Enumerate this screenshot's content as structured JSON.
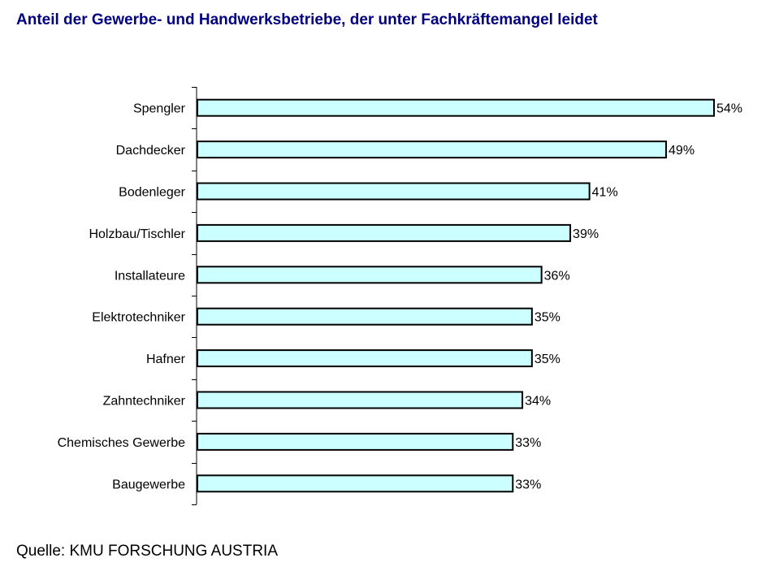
{
  "chart_data": {
    "type": "bar",
    "orientation": "horizontal",
    "title": "Anteil der Gewerbe- und Handwerksbetriebe, der unter Fachkräftemangel leidet",
    "source": "Quelle: KMU FORSCHUNG AUSTRIA",
    "categories": [
      "Spengler",
      "Dachdecker",
      "Bodenleger",
      "Holzbau/Tischler",
      "Installateure",
      "Elektrotechniker",
      "Hafner",
      "Zahntechniker",
      "Chemisches Gewerbe",
      "Baugewerbe"
    ],
    "values": [
      54,
      49,
      41,
      39,
      36,
      35,
      35,
      34,
      33,
      33
    ],
    "data_labels": [
      "54%",
      "49%",
      "41%",
      "39%",
      "36%",
      "35%",
      "35%",
      "34%",
      "33%",
      "33%"
    ],
    "unit": "%",
    "xlim": [
      0,
      54
    ],
    "grid": false,
    "legend": "none",
    "colors": {
      "bar_fill": "#ccffff",
      "bar_stroke": "#000000",
      "title": "#000080"
    }
  }
}
